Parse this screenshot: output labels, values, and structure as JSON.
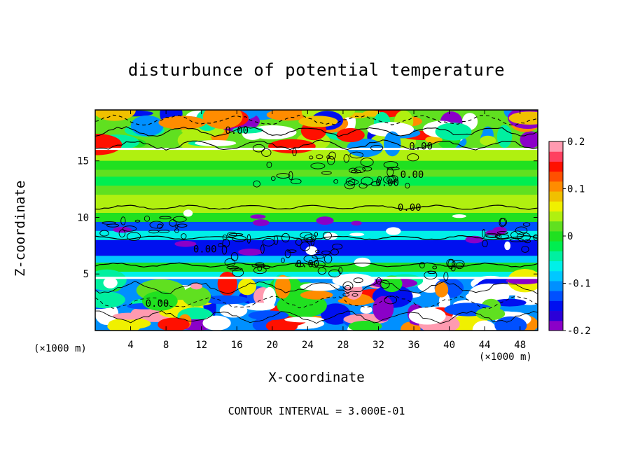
{
  "chart_data": {
    "type": "heatmap",
    "title": "disturbunce of potential temperature",
    "xlabel": "X-coordinate",
    "ylabel": "Z-coordinate",
    "x_unit": "(×1000 m)",
    "xlim": [
      0,
      50
    ],
    "ylim": [
      0,
      19.5
    ],
    "x_ticks": [
      4,
      8,
      12,
      16,
      20,
      24,
      28,
      32,
      36,
      40,
      44,
      48
    ],
    "y_ticks": [
      5,
      10,
      15
    ],
    "colorbar": {
      "range": [
        -0.2,
        0.2
      ],
      "tick_labels": [
        "0.2",
        "0.1",
        "0",
        "-0.1",
        "-0.2"
      ],
      "colors": [
        "#8b00c8",
        "#2b00d8",
        "#0010f0",
        "#0050ff",
        "#0090ff",
        "#00c8ff",
        "#00f0e8",
        "#00f0a0",
        "#00ee50",
        "#20e020",
        "#60e020",
        "#b0f010",
        "#f0f000",
        "#f0c000",
        "#ff8c00",
        "#ff5000",
        "#ff1000",
        "#ff4060",
        "#ff9ab0"
      ]
    },
    "bands": [
      {
        "z": [
          16.0,
          15.0
        ],
        "value": 0.05
      },
      {
        "z": [
          15.0,
          14.2
        ],
        "value": 0.01
      },
      {
        "z": [
          14.2,
          13.6
        ],
        "value": 0.03
      },
      {
        "z": [
          13.6,
          12.8
        ],
        "value": -0.03
      },
      {
        "z": [
          12.8,
          12.0
        ],
        "value": 0.02
      },
      {
        "z": [
          12.0,
          10.4
        ],
        "value": 0.04
      },
      {
        "z": [
          10.4,
          9.6
        ],
        "value": 0.0
      },
      {
        "z": [
          9.6,
          8.8
        ],
        "value": -0.12
      },
      {
        "z": [
          8.8,
          8.0
        ],
        "value": -0.06
      },
      {
        "z": [
          8.0,
          6.6
        ],
        "value": -0.15
      },
      {
        "z": [
          6.6,
          6.0
        ],
        "value": -0.08
      },
      {
        "z": [
          6.0,
          5.2
        ],
        "value": 0.0
      },
      {
        "z": [
          5.2,
          4.6
        ],
        "value": -0.07
      }
    ],
    "contour_labels": [
      {
        "text": "0.00",
        "x": 16.0,
        "z": 17.7
      },
      {
        "text": "0.00",
        "x": 36.8,
        "z": 16.3
      },
      {
        "text": "0.00",
        "x": 35.8,
        "z": 13.8
      },
      {
        "text": "0.00",
        "x": 33.0,
        "z": 13.1
      },
      {
        "text": "0.00",
        "x": 35.5,
        "z": 10.9
      },
      {
        "text": "0.00",
        "x": 12.4,
        "z": 7.2
      },
      {
        "text": "0.00",
        "x": 24.0,
        "z": 5.9
      },
      {
        "text": "0.00",
        "x": 7.0,
        "z": 2.4
      }
    ],
    "contour_interval": "3.000E-01"
  },
  "footer": {
    "contour_interval_text": "CONTOUR INTERVAL = 3.000E-01"
  }
}
